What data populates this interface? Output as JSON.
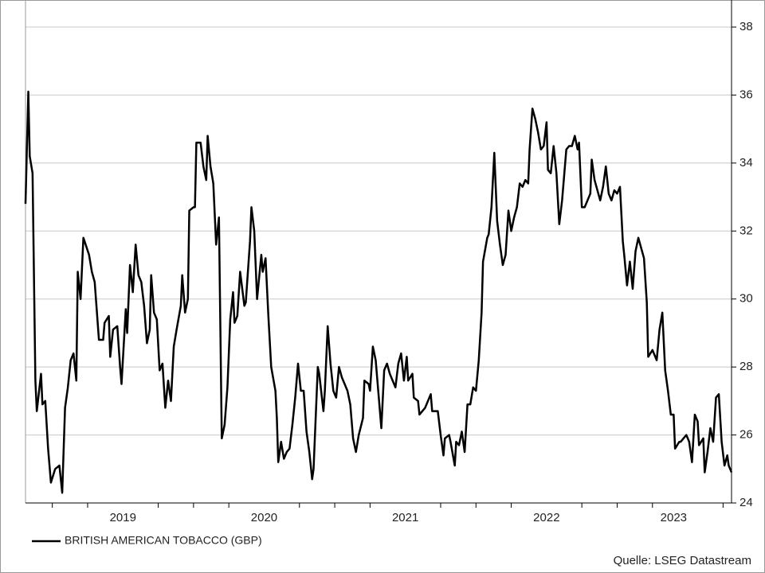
{
  "chart_data": {
    "type": "line",
    "legend": "bottom-left",
    "source": "Quelle: LSEG Datastream",
    "grid": true,
    "xlim": [
      2018.81,
      2023.81
    ],
    "ylim": [
      24,
      38
    ],
    "yticks": [
      24,
      26,
      28,
      30,
      32,
      34,
      36,
      38
    ],
    "xticks": [
      {
        "value": 2019.5,
        "label": "2019"
      },
      {
        "value": 2020.5,
        "label": "2020"
      },
      {
        "value": 2021.5,
        "label": "2021"
      },
      {
        "value": 2022.5,
        "label": "2022"
      },
      {
        "value": 2023.4,
        "label": "2023"
      }
    ],
    "x_minor_ticks": [
      2019,
      2019.25,
      2019.75,
      2020,
      2020.25,
      2020.75,
      2021,
      2021.25,
      2021.75,
      2022,
      2022.25,
      2022.75,
      2023,
      2023.25,
      2023.75
    ],
    "x": [
      2018.81,
      2018.83,
      2018.84,
      2018.86,
      2018.88,
      2018.89,
      2018.92,
      2018.93,
      2018.95,
      2018.97,
      2018.99,
      2019.02,
      2019.05,
      2019.07,
      2019.09,
      2019.11,
      2019.13,
      2019.15,
      2019.17,
      2019.18,
      2019.2,
      2019.22,
      2019.26,
      2019.28,
      2019.3,
      2019.33,
      2019.36,
      2019.37,
      2019.4,
      2019.41,
      2019.43,
      2019.46,
      2019.48,
      2019.49,
      2019.52,
      2019.53,
      2019.55,
      2019.57,
      2019.59,
      2019.61,
      2019.63,
      2019.65,
      2019.67,
      2019.69,
      2019.7,
      2019.72,
      2019.74,
      2019.76,
      2019.78,
      2019.8,
      2019.82,
      2019.84,
      2019.86,
      2019.88,
      2019.91,
      2019.92,
      2019.94,
      2019.96,
      2019.97,
      2020.0,
      2020.01,
      2020.02,
      2020.05,
      2020.07,
      2020.09,
      2020.1,
      2020.12,
      2020.14,
      2020.16,
      2020.18,
      2020.2,
      2020.22,
      2020.24,
      2020.26,
      2020.28,
      2020.29,
      2020.31,
      2020.33,
      2020.36,
      2020.37,
      2020.4,
      2020.41,
      2020.43,
      2020.45,
      2020.48,
      2020.49,
      2020.51,
      2020.53,
      2020.55,
      2020.58,
      2020.59,
      2020.6,
      2020.62,
      2020.64,
      2020.66,
      2020.68,
      2020.7,
      2020.72,
      2020.74,
      2020.76,
      2020.78,
      2020.8,
      2020.82,
      2020.84,
      2020.85,
      2020.88,
      2020.89,
      2020.92,
      2020.93,
      2020.95,
      2020.97,
      2020.99,
      2021.01,
      2021.03,
      2021.05,
      2021.07,
      2021.09,
      2021.11,
      2021.13,
      2021.15,
      2021.17,
      2021.2,
      2021.21,
      2021.24,
      2021.25,
      2021.27,
      2021.29,
      2021.31,
      2021.33,
      2021.35,
      2021.37,
      2021.39,
      2021.41,
      2021.43,
      2021.45,
      2021.47,
      2021.49,
      2021.51,
      2021.52,
      2021.55,
      2021.56,
      2021.59,
      2021.6,
      2021.62,
      2021.64,
      2021.66,
      2021.68,
      2021.69,
      2021.72,
      2021.73,
      2021.75,
      2021.77,
      2021.78,
      2021.81,
      2021.82,
      2021.85,
      2021.86,
      2021.88,
      2021.9,
      2021.92,
      2021.94,
      2021.96,
      2021.98,
      2022.0,
      2022.02,
      2022.04,
      2022.05,
      2022.08,
      2022.09,
      2022.11,
      2022.13,
      2022.15,
      2022.17,
      2022.19,
      2022.21,
      2022.23,
      2022.25,
      2022.27,
      2022.29,
      2022.31,
      2022.33,
      2022.35,
      2022.37,
      2022.38,
      2022.4,
      2022.42,
      2022.44,
      2022.46,
      2022.48,
      2022.5,
      2022.51,
      2022.53,
      2022.55,
      2022.57,
      2022.59,
      2022.61,
      2022.63,
      2022.64,
      2022.66,
      2022.68,
      2022.7,
      2022.72,
      2022.73,
      2022.75,
      2022.77,
      2022.78,
      2022.81,
      2022.82,
      2022.84,
      2022.86,
      2022.88,
      2022.9,
      2022.92,
      2022.94,
      2022.96,
      2022.98,
      2023.0,
      2023.02,
      2023.04,
      2023.05,
      2023.07,
      2023.09,
      2023.11,
      2023.13,
      2023.15,
      2023.17,
      2023.19,
      2023.21,
      2023.22,
      2023.25,
      2023.26,
      2023.28,
      2023.3,
      2023.32,
      2023.34,
      2023.36,
      2023.38,
      2023.4,
      2023.41,
      2023.44,
      2023.45,
      2023.47,
      2023.49,
      2023.51,
      2023.53,
      2023.55,
      2023.57,
      2023.58,
      2023.61,
      2023.62,
      2023.64,
      2023.66,
      2023.68,
      2023.7,
      2023.72,
      2023.74,
      2023.76,
      2023.78,
      2023.79,
      2023.81
    ],
    "series": [
      {
        "name": "BRITISH AMERICAN TOBACCO (GBP)",
        "color": "#000000",
        "values": [
          32.8,
          36.1,
          34.2,
          33.7,
          27.6,
          26.7,
          27.8,
          26.9,
          27.0,
          25.6,
          24.6,
          25.0,
          25.1,
          24.3,
          26.8,
          27.4,
          28.2,
          28.4,
          27.6,
          30.8,
          30.0,
          31.8,
          31.3,
          30.8,
          30.5,
          28.8,
          28.8,
          29.3,
          29.5,
          28.3,
          29.1,
          29.2,
          28.0,
          27.5,
          29.7,
          29.0,
          31.0,
          30.2,
          31.6,
          30.7,
          30.5,
          29.8,
          28.7,
          29.1,
          30.7,
          29.6,
          29.4,
          27.9,
          28.1,
          26.8,
          27.6,
          27.0,
          28.6,
          29.1,
          29.8,
          30.7,
          29.6,
          30.0,
          32.6,
          32.7,
          32.7,
          34.6,
          34.6,
          33.9,
          33.5,
          34.8,
          33.9,
          33.4,
          31.6,
          32.4,
          25.9,
          26.3,
          27.4,
          29.4,
          30.2,
          29.3,
          29.5,
          30.8,
          29.8,
          29.9,
          31.7,
          32.7,
          32.0,
          30.0,
          31.3,
          30.8,
          31.2,
          29.5,
          28.0,
          27.3,
          26.5,
          25.2,
          25.8,
          25.3,
          25.5,
          25.6,
          26.3,
          27.1,
          28.1,
          27.3,
          27.3,
          26.1,
          25.5,
          24.7,
          25.0,
          28.0,
          27.8,
          26.7,
          27.3,
          29.2,
          28.1,
          27.3,
          27.1,
          28.0,
          27.7,
          27.5,
          27.3,
          26.9,
          25.9,
          25.5,
          26.0,
          26.5,
          27.6,
          27.5,
          27.3,
          28.6,
          28.2,
          27.2,
          26.2,
          27.9,
          28.1,
          27.8,
          27.6,
          27.4,
          28.1,
          28.4,
          27.6,
          28.3,
          27.6,
          27.8,
          27.1,
          27.0,
          26.6,
          26.7,
          26.8,
          27.0,
          27.2,
          26.7,
          26.7,
          26.7,
          26.0,
          25.4,
          25.9,
          26.0,
          25.8,
          25.1,
          25.8,
          25.7,
          26.1,
          25.5,
          26.9,
          26.9,
          27.4,
          27.3,
          28.2,
          29.6,
          31.1,
          31.8,
          31.9,
          32.7,
          34.3,
          32.3,
          31.6,
          31.0,
          31.3,
          32.6,
          32.0,
          32.4,
          32.7,
          33.4,
          33.3,
          33.5,
          33.4,
          34.4,
          35.6,
          35.3,
          34.9,
          34.4,
          34.5,
          35.2,
          33.8,
          33.7,
          34.5,
          33.7,
          32.2,
          32.9,
          33.9,
          34.4,
          34.5,
          34.5,
          34.8,
          34.4,
          34.6,
          32.7,
          32.7,
          32.8,
          33.1,
          34.1,
          33.5,
          33.2,
          32.9,
          33.3,
          33.9,
          33.1,
          32.9,
          33.2,
          33.1,
          33.3,
          31.7,
          31.3,
          30.4,
          31.1,
          30.3,
          31.4,
          31.8,
          31.5,
          31.2,
          29.9,
          28.3,
          28.5,
          28.4,
          28.2,
          29.1,
          29.6,
          27.9,
          27.3,
          26.6,
          26.6,
          25.6,
          25.8,
          25.8,
          25.9,
          26.0,
          25.8,
          25.2,
          26.6,
          26.4,
          25.7,
          25.9,
          24.9,
          25.5,
          26.2,
          25.8,
          27.1,
          27.2,
          25.8,
          25.1,
          25.4,
          25.1,
          24.9
        ]
      }
    ]
  }
}
